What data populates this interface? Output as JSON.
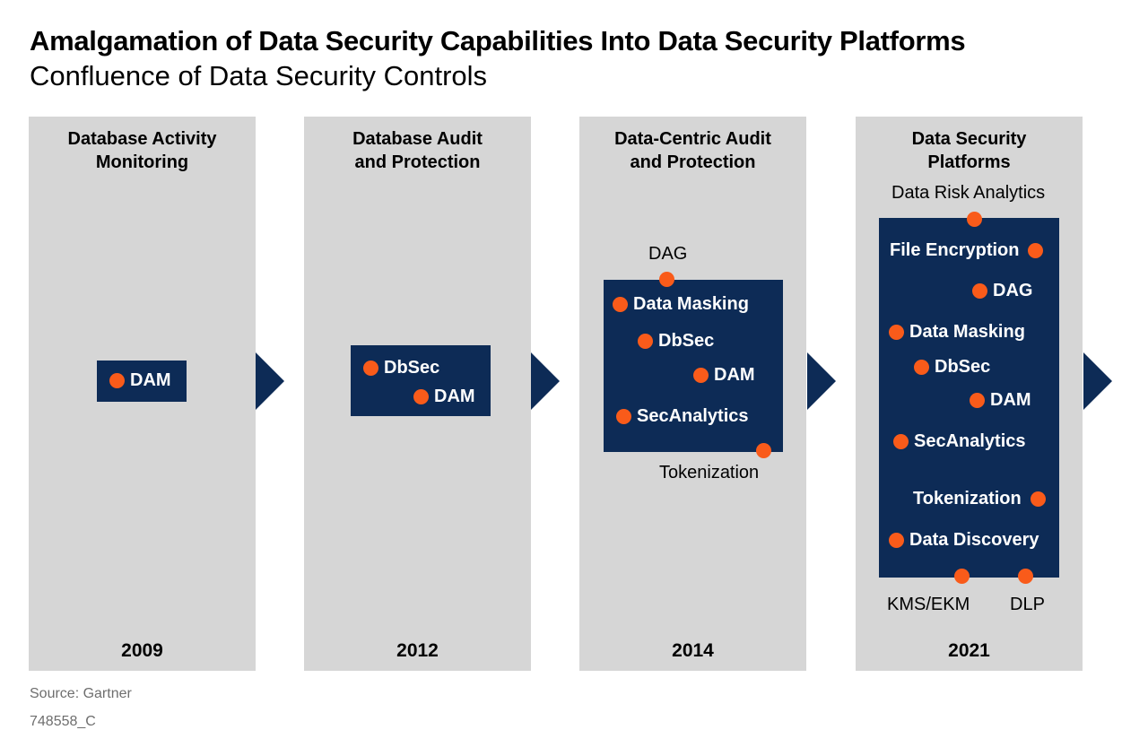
{
  "title": "Amalgamation of Data Security Capabilities Into Data Security Platforms",
  "subtitle": "Confluence of Data Security Controls",
  "panels": [
    {
      "heading_lines": [
        "Database Activity",
        "Monitoring"
      ],
      "year": "2009",
      "items": [
        "DAM"
      ]
    },
    {
      "heading_lines": [
        "Database Audit",
        "and Protection"
      ],
      "year": "2012",
      "items": [
        "DbSec",
        "DAM"
      ]
    },
    {
      "heading_lines": [
        "Data-Centric Audit",
        "and Protection"
      ],
      "year": "2014",
      "external_top": "DAG",
      "items": [
        "Data Masking",
        "DbSec",
        "DAM",
        "SecAnalytics"
      ],
      "external_bottom": "Tokenization"
    },
    {
      "heading_lines": [
        "Data Security",
        "Platforms"
      ],
      "year": "2021",
      "external_top": "Data Risk Analytics",
      "items": [
        "File Encryption",
        "DAG",
        "Data Masking",
        "DbSec",
        "DAM",
        "SecAnalytics",
        "Tokenization",
        "Data Discovery"
      ],
      "external_bottom": [
        "KMS/EKM",
        "DLP"
      ]
    }
  ],
  "source": "Source: Gartner",
  "figure_id": "748558_C",
  "colors": {
    "panel_bg": "#d6d6d6",
    "box_navy": "#0d2b56",
    "dot_orange": "#f95b1a",
    "footnote_gray": "#6e6e6e"
  }
}
